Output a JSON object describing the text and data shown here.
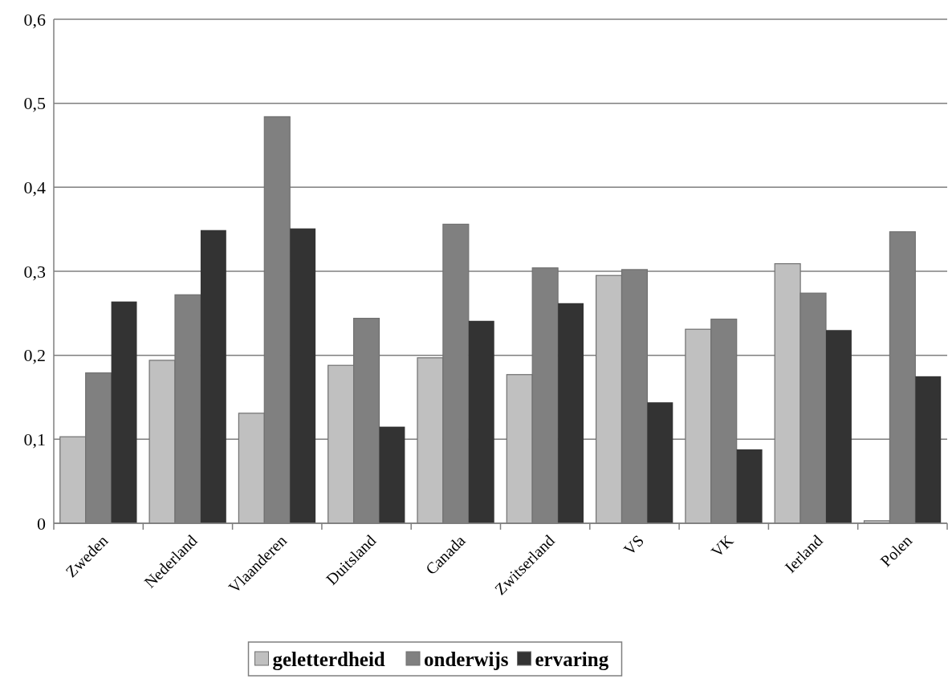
{
  "chart_data": {
    "type": "bar",
    "categories": [
      "Zweden",
      "Nederland",
      "Vlaanderen",
      "Duitsland",
      "Canada",
      "Zwitserland",
      "VS",
      "VK",
      "Ierland",
      "Polen"
    ],
    "series": [
      {
        "name": "geletterdheid",
        "color": "#c0c0c0",
        "values": [
          0.103,
          0.194,
          0.131,
          0.188,
          0.197,
          0.177,
          0.295,
          0.231,
          0.309,
          0.003
        ]
      },
      {
        "name": "onderwijs",
        "color": "#808080",
        "values": [
          0.179,
          0.272,
          0.484,
          0.244,
          0.356,
          0.304,
          0.302,
          0.243,
          0.274,
          0.347
        ]
      },
      {
        "name": "ervaring",
        "color": "#333333",
        "values": [
          0.264,
          0.349,
          0.351,
          0.115,
          0.241,
          0.262,
          0.144,
          0.088,
          0.23,
          0.175
        ]
      }
    ],
    "ylim": [
      0,
      0.6
    ],
    "yticks": [
      0,
      {
        "value": 0.1,
        "label": "0,1"
      },
      {
        "value": 0.2,
        "label": "0,2"
      },
      {
        "value": 0.3,
        "label": "0,3"
      },
      {
        "value": 0.4,
        "label": "0,4"
      },
      {
        "value": 0.5,
        "label": "0,5"
      },
      {
        "value": 0.6,
        "label": "0,6"
      }
    ],
    "grid": "y",
    "legend": "bottom"
  }
}
